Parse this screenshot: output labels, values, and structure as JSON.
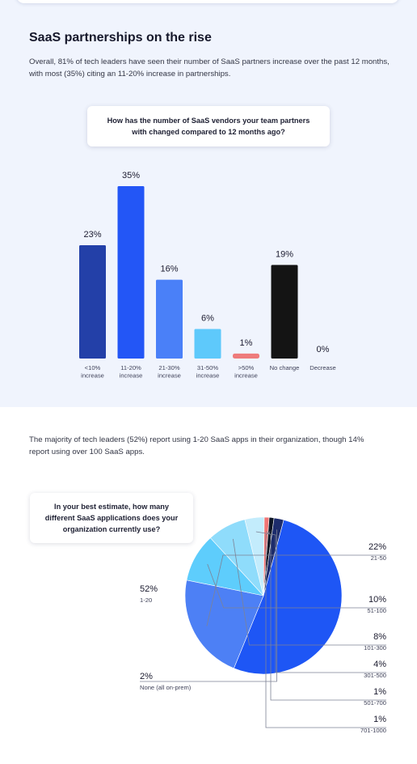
{
  "section": {
    "title": "SaaS partnerships on the rise",
    "description": "Overall, 81% of tech leaders have seen their number of SaaS partners increase over the past 12 months, with most (35%) citing an 11-20% increase in partnerships.",
    "question1": "How has the number of SaaS vendors your team partners with changed compared to 12 months ago?",
    "intro2": "The majority of tech leaders (52%) report using 1-20 SaaS apps in their organization, though 14% report using over 100 SaaS apps.",
    "question2": "In your best estimate, how many different SaaS applications does your organization currently use?"
  },
  "chart_data": [
    {
      "type": "bar",
      "categories": [
        [
          "<10%",
          "increase"
        ],
        [
          "11-20%",
          "increase"
        ],
        [
          "21-30%",
          "increase"
        ],
        [
          "31-50%",
          "increase"
        ],
        [
          ">50%",
          "increase"
        ],
        [
          "No change"
        ],
        [
          "Decrease"
        ]
      ],
      "values": [
        23,
        35,
        16,
        6,
        1,
        19,
        0
      ],
      "value_labels": [
        "23%",
        "35%",
        "16%",
        "6%",
        "1%",
        "19%",
        "0%"
      ],
      "colors": [
        "#2340a8",
        "#2356f6",
        "#4a80f8",
        "#5ec9fb",
        "#ee7b7b",
        "#141414",
        "#cccccc"
      ],
      "ylim": [
        0,
        35
      ],
      "grid": false
    },
    {
      "type": "pie",
      "slices": [
        {
          "label": "1-20",
          "value": 52,
          "value_label": "52%",
          "color": "#1e56f5"
        },
        {
          "label": "21-50",
          "value": 22,
          "value_label": "22%",
          "color": "#4d80f5"
        },
        {
          "label": "51-100",
          "value": 10,
          "value_label": "10%",
          "color": "#5ecdfc"
        },
        {
          "label": "101-300",
          "value": 8,
          "value_label": "8%",
          "color": "#8fdcfb"
        },
        {
          "label": "301-500",
          "value": 4,
          "value_label": "4%",
          "color": "#c3ecfc"
        },
        {
          "label": "501-700",
          "value": 1,
          "value_label": "1%",
          "color": "#ef7575"
        },
        {
          "label": "701-1000",
          "value": 1,
          "value_label": "1%",
          "color": "#0e1626"
        },
        {
          "label": "None (all on-prem)",
          "value": 2,
          "value_label": "2%",
          "color": "#1d2c6c"
        }
      ],
      "start_angle_deg": 15
    }
  ]
}
